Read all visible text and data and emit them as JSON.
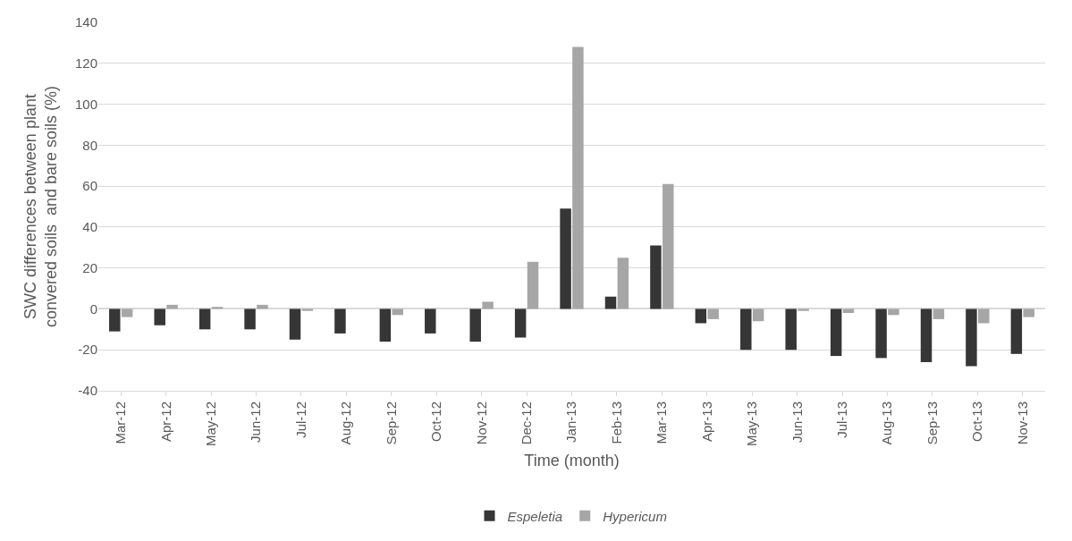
{
  "chart_data": {
    "type": "bar",
    "xlabel": "Time (month)",
    "ylabel": "SWC differences between plant convered soils  and bare soils (%)",
    "categories": [
      "Mar-12",
      "Apr-12",
      "May-12",
      "Jun-12",
      "Jul-12",
      "Aug-12",
      "Sep-12",
      "Oct-12",
      "Nov-12",
      "Dec-12",
      "Jan-13",
      "Feb-13",
      "Mar-13",
      "Apr-13",
      "May-13",
      "Jun-13",
      "Jul-13",
      "Aug-13",
      "Sep-13",
      "Oct-13",
      "Nov-13"
    ],
    "series": [
      {
        "name": "Espeletia",
        "color": "#363636",
        "values": [
          -11,
          -8,
          -10,
          -10,
          -15,
          -12,
          -16,
          -12,
          -16,
          -14,
          49,
          6,
          31,
          -7,
          -20,
          -20,
          -23,
          -24,
          -26,
          -28,
          -22
        ]
      },
      {
        "name": "Hypericum",
        "color": "#a6a6a6",
        "values": [
          -4,
          2,
          1,
          2,
          -1,
          0,
          -3,
          0,
          3.5,
          23,
          128,
          25,
          61,
          -5,
          -6,
          -1,
          -2,
          -3,
          -5,
          -7,
          -4
        ]
      }
    ],
    "ylim": [
      -40,
      140
    ],
    "yticks": [
      -40,
      -20,
      0,
      20,
      40,
      60,
      80,
      100,
      120,
      140
    ],
    "grid": "y",
    "legend": "bottom"
  }
}
